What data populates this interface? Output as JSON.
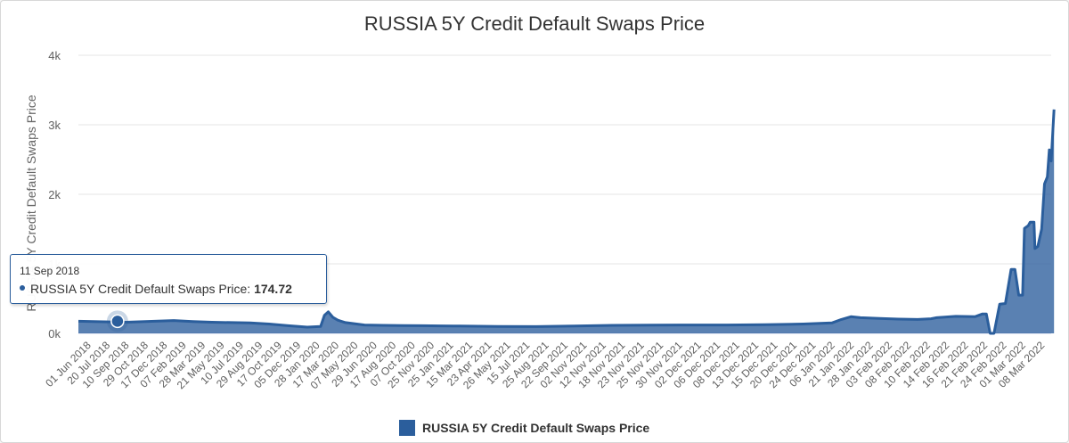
{
  "chart_data": {
    "type": "area",
    "title": "RUSSIA 5Y Credit Default Swaps Price",
    "ylabel": "RUSSIA 5Y Credit Default Swaps Price",
    "xlabel": "",
    "ylim": [
      0,
      4000
    ],
    "y_ticks": [
      {
        "value": 0,
        "label": "0k"
      },
      {
        "value": 1000,
        "label": "1k"
      },
      {
        "value": 2000,
        "label": "2k"
      },
      {
        "value": 3000,
        "label": "3k"
      },
      {
        "value": 4000,
        "label": "4k"
      }
    ],
    "x_tick_labels": [
      "01 Jun 2018",
      "20 Jul 2018",
      "10 Sep 2018",
      "29 Oct 2018",
      "17 Dec 2018",
      "07 Feb 2019",
      "28 Mar 2019",
      "21 May 2019",
      "10 Jul 2019",
      "29 Aug 2019",
      "17 Oct 2019",
      "05 Dec 2019",
      "28 Jan 2020",
      "17 Mar 2020",
      "07 May 2020",
      "29 Jun 2020",
      "17 Aug 2020",
      "07 Oct 2020",
      "25 Nov 2020",
      "25 Jan 2021",
      "15 Mar 2021",
      "23 Apr 2021",
      "26 May 2021",
      "15 Jul 2021",
      "25 Aug 2021",
      "22 Sep 2021",
      "02 Nov 2021",
      "12 Nov 2021",
      "18 Nov 2021",
      "23 Nov 2021",
      "25 Nov 2021",
      "30 Nov 2021",
      "02 Dec 2021",
      "06 Dec 2021",
      "08 Dec 2021",
      "13 Dec 2021",
      "15 Dec 2021",
      "20 Dec 2021",
      "24 Dec 2021",
      "06 Jan 2022",
      "21 Jan 2022",
      "28 Jan 2022",
      "03 Feb 2022",
      "08 Feb 2022",
      "10 Feb 2022",
      "14 Feb 2022",
      "16 Feb 2022",
      "21 Feb 2022",
      "24 Feb 2022",
      "01 Mar 2022",
      "08 Mar 2022"
    ],
    "legend_position": "bottom-center",
    "grid": true,
    "color": "#2b5e9c",
    "series": [
      {
        "name": "RUSSIA 5Y Credit Default Swaps Price",
        "points": [
          [
            0,
            175
          ],
          [
            2.5,
            160
          ],
          [
            4,
            175
          ],
          [
            5,
            185
          ],
          [
            6,
            170
          ],
          [
            7,
            160
          ],
          [
            9,
            150
          ],
          [
            10,
            135
          ],
          [
            11,
            110
          ],
          [
            12,
            90
          ],
          [
            12.7,
            100
          ],
          [
            12.9,
            260
          ],
          [
            13.1,
            310
          ],
          [
            13.35,
            230
          ],
          [
            13.6,
            190
          ],
          [
            14,
            155
          ],
          [
            15,
            120
          ],
          [
            16,
            115
          ],
          [
            17,
            112
          ],
          [
            18,
            110
          ],
          [
            19,
            108
          ],
          [
            20,
            105
          ],
          [
            22,
            100
          ],
          [
            24,
            98
          ],
          [
            26,
            105
          ],
          [
            28,
            115
          ],
          [
            30,
            118
          ],
          [
            32,
            120
          ],
          [
            34,
            120
          ],
          [
            36,
            125
          ],
          [
            38,
            135
          ],
          [
            39.5,
            150
          ],
          [
            40,
            200
          ],
          [
            40.5,
            240
          ],
          [
            41,
            225
          ],
          [
            42,
            215
          ],
          [
            43,
            205
          ],
          [
            44,
            200
          ],
          [
            44.7,
            210
          ],
          [
            45,
            225
          ],
          [
            46,
            245
          ],
          [
            47,
            240
          ],
          [
            47.4,
            280
          ],
          [
            47.6,
            280
          ],
          [
            47.8,
            0
          ],
          [
            48,
            0
          ],
          [
            48.3,
            420
          ],
          [
            48.6,
            430
          ],
          [
            48.9,
            920
          ],
          [
            49.1,
            920
          ],
          [
            49.3,
            550
          ],
          [
            49.5,
            550
          ],
          [
            49.6,
            1510
          ],
          [
            49.8,
            1550
          ],
          [
            49.9,
            1600
          ],
          [
            50.1,
            1600
          ],
          [
            50.15,
            1220
          ],
          [
            50.3,
            1250
          ],
          [
            50.5,
            1500
          ],
          [
            50.65,
            2150
          ],
          [
            50.8,
            2250
          ],
          [
            50.9,
            2640
          ],
          [
            51.0,
            2480
          ],
          [
            51.15,
            3220
          ]
        ]
      }
    ],
    "tooltip": {
      "date": "11 Sep 2018",
      "series_name": "RUSSIA 5Y Credit Default Swaps Price:",
      "value": "174.72",
      "x": 2.05,
      "y": 174.72
    }
  }
}
